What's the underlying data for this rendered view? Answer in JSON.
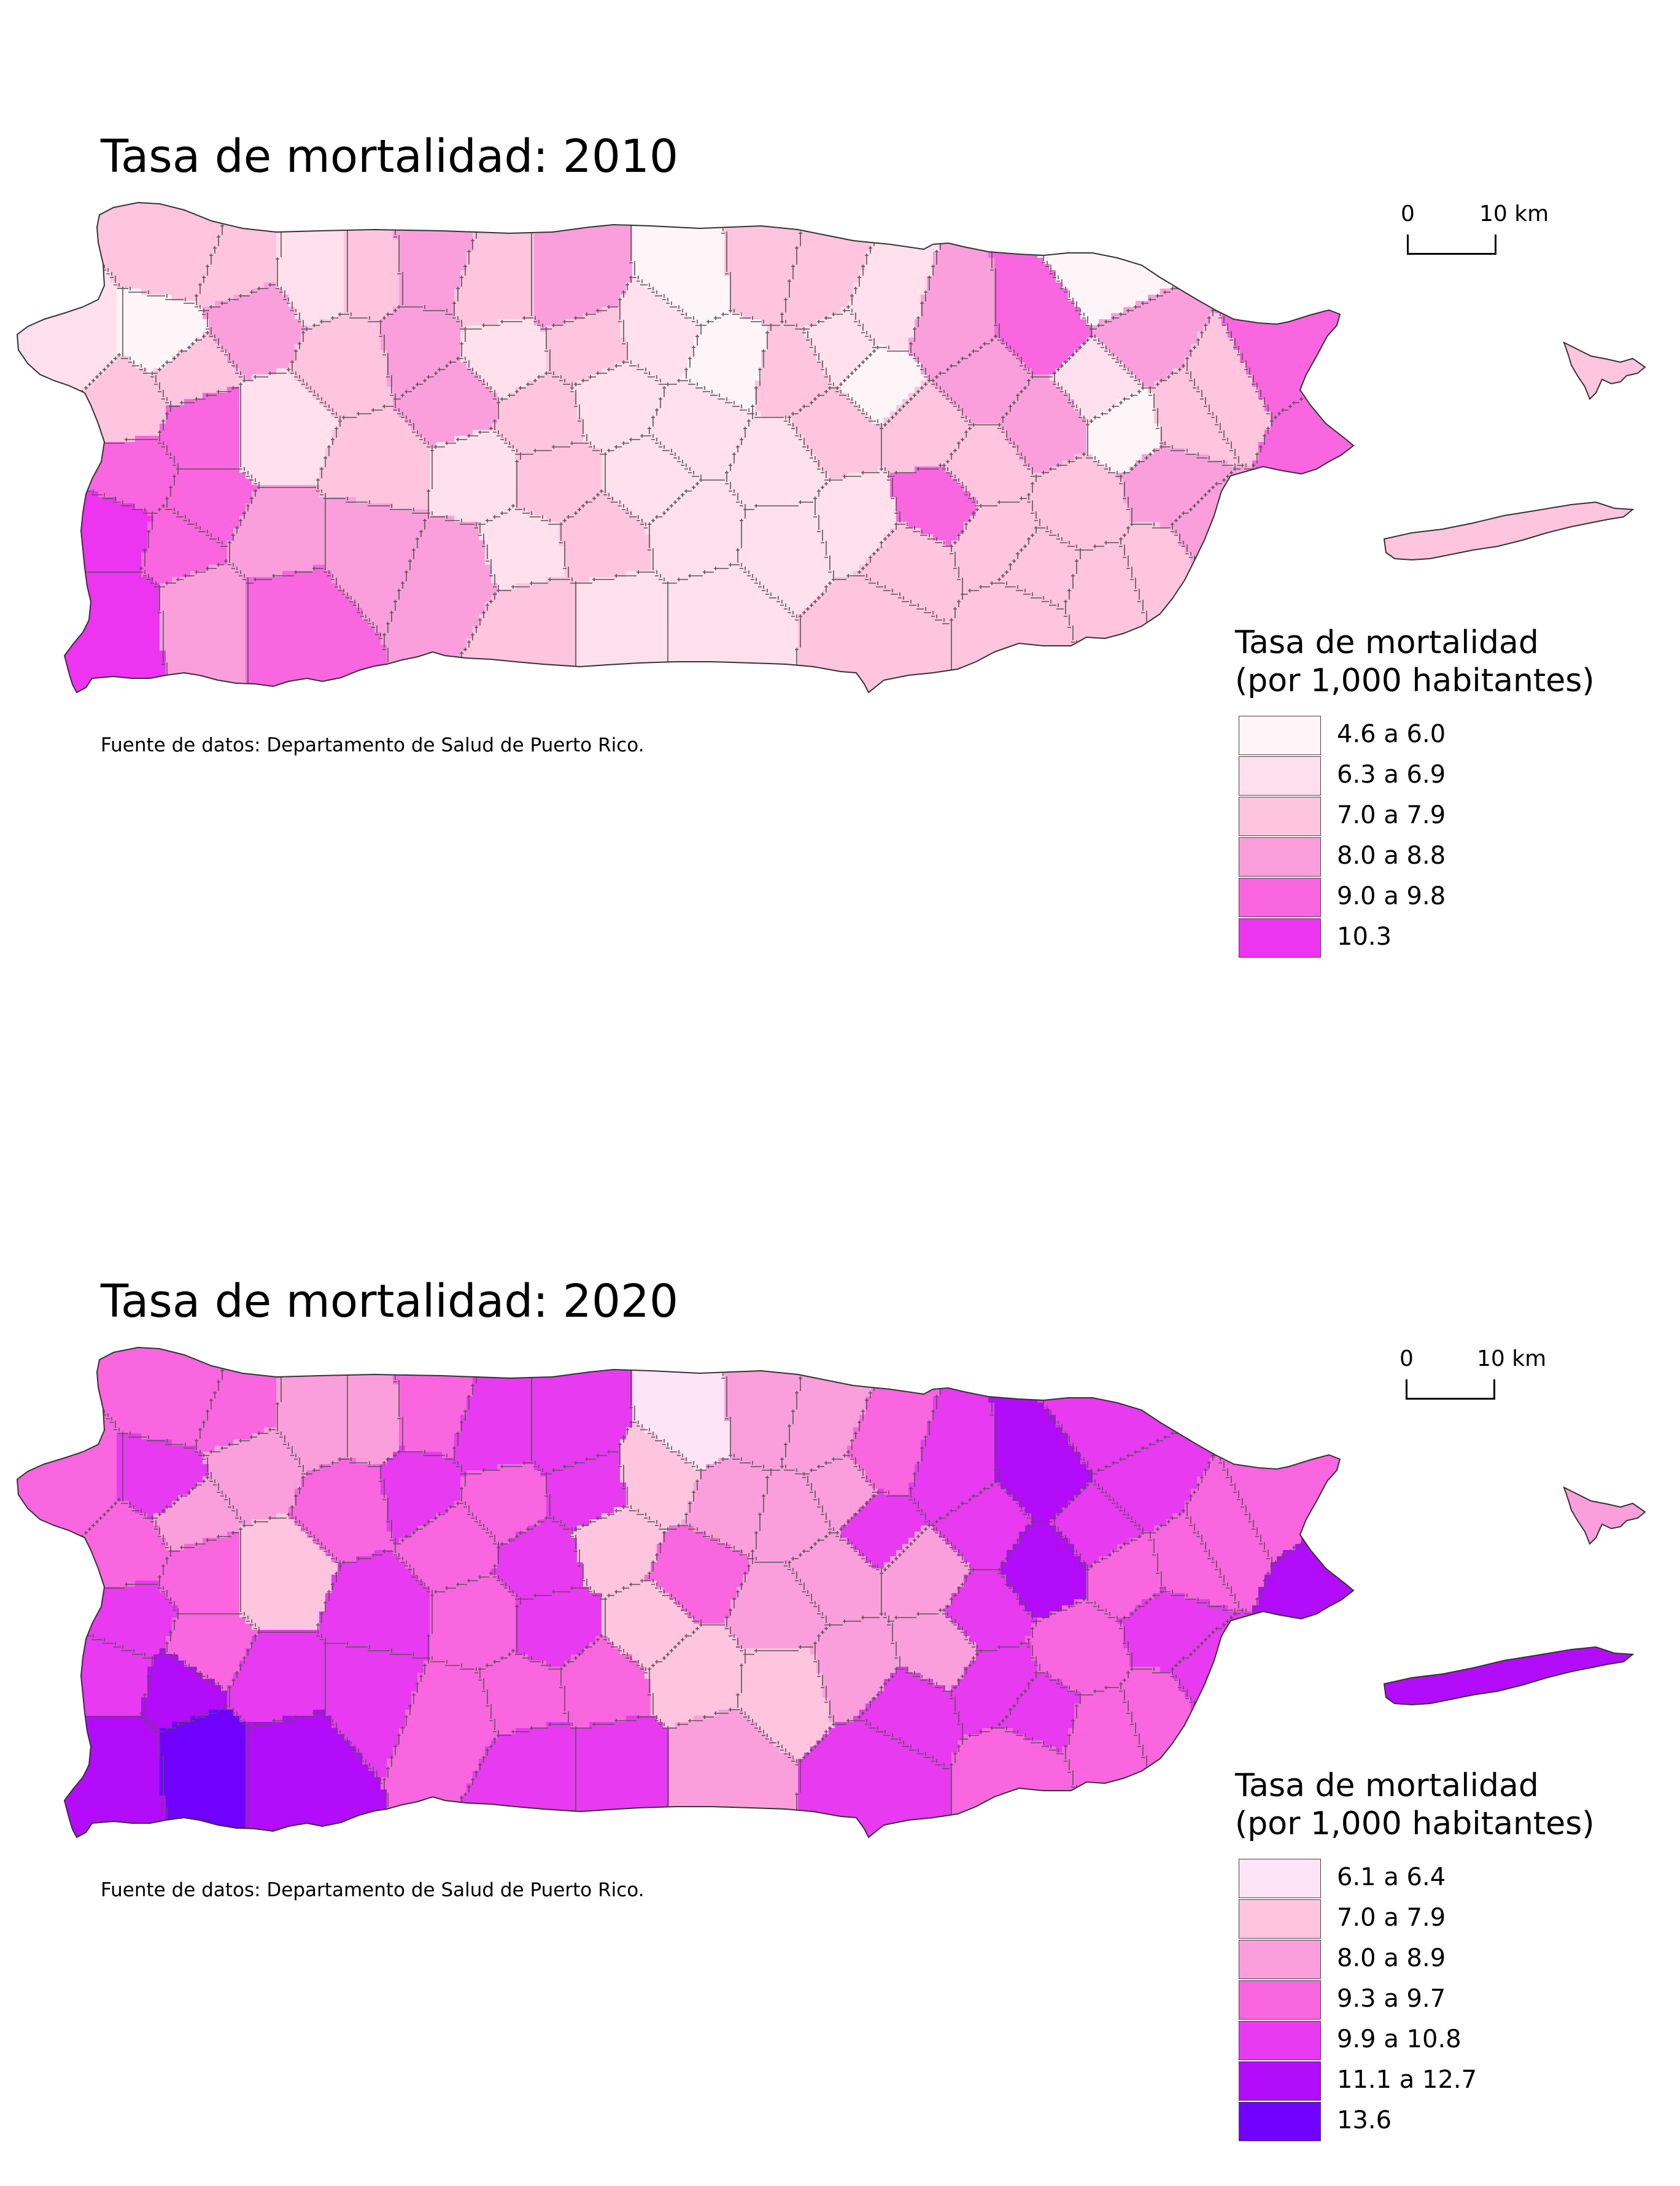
{
  "maps": [
    {
      "title": "Tasa de mortalidad: 2010",
      "source": "Fuente de datos: Departamento de Salud de Puerto Rico.",
      "scale": {
        "zero": "0",
        "ten": "10 km"
      },
      "legend": {
        "title_line1": "Tasa de mortalidad",
        "title_line2": "(por 1,000 habitantes)",
        "classes": [
          {
            "label": "4.6 a 6.0",
            "color": "#fff4f8"
          },
          {
            "label": "6.3 a 6.9",
            "color": "#ffe0ec"
          },
          {
            "label": "7.0 a 7.9",
            "color": "#ffc4de"
          },
          {
            "label": "8.0 a 8.8",
            "color": "#fb9fdc"
          },
          {
            "label": "9.0 a 9.8",
            "color": "#fa66df"
          },
          {
            "label": "10.3",
            "color": "#ed34f0"
          }
        ]
      }
    },
    {
      "title": "Tasa de mortalidad: 2020",
      "source": "Fuente de datos: Departamento de Salud de Puerto Rico.",
      "scale": {
        "zero": "0",
        "ten": "10 km"
      },
      "legend": {
        "title_line1": "Tasa de mortalidad",
        "title_line2": "(por 1,000 habitantes)",
        "classes": [
          {
            "label": "6.1 a 6.4",
            "color": "#ffe4f8"
          },
          {
            "label": "7.0 a 7.9",
            "color": "#ffc4de"
          },
          {
            "label": "8.0 a 8.9",
            "color": "#fb9fdc"
          },
          {
            "label": "9.3 a 9.7",
            "color": "#fa66df"
          },
          {
            "label": "9.9 a 10.8",
            "color": "#e83af0"
          },
          {
            "label": "11.1 a 12.7",
            "color": "#b30cfa"
          },
          {
            "label": "13.6",
            "color": "#7000ff"
          }
        ]
      }
    }
  ]
}
